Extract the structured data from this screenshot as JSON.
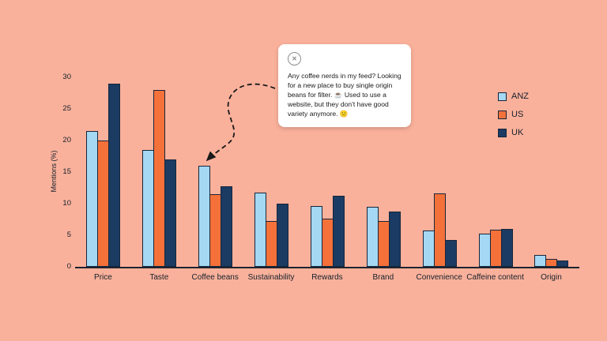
{
  "background": "#FAB19B",
  "chart_data": {
    "type": "bar",
    "title": "",
    "xlabel": "",
    "ylabel": "Mentions (%)",
    "ylim": [
      0,
      30
    ],
    "yticks": [
      0,
      5,
      10,
      15,
      20,
      25,
      30
    ],
    "grid": false,
    "legend_position": "right",
    "categories": [
      "Price",
      "Taste",
      "Coffee beans",
      "Sustainability",
      "Rewards",
      "Brand",
      "Convenience",
      "Caffeine content",
      "Origin"
    ],
    "series": [
      {
        "name": "ANZ",
        "color": "#A5D8F3",
        "values": [
          21.5,
          18.5,
          16.0,
          11.8,
          9.6,
          9.5,
          5.8,
          5.2,
          1.9
        ]
      },
      {
        "name": "US",
        "color": "#F5713A",
        "values": [
          20.0,
          28.0,
          11.5,
          7.3,
          7.6,
          7.3,
          11.6,
          5.9,
          1.2
        ]
      },
      {
        "name": "UK",
        "color": "#1B3B63",
        "values": [
          29.0,
          17.0,
          12.8,
          10.0,
          11.2,
          8.8,
          4.2,
          6.0,
          1.0
        ]
      }
    ]
  },
  "callout": {
    "icon": "x-social-icon",
    "text": "Any coffee nerds in my feed? Looking for a new place to buy single origin beans for filter. ☕ Used to use a website, but they don't have good variety anymore. 😕"
  }
}
